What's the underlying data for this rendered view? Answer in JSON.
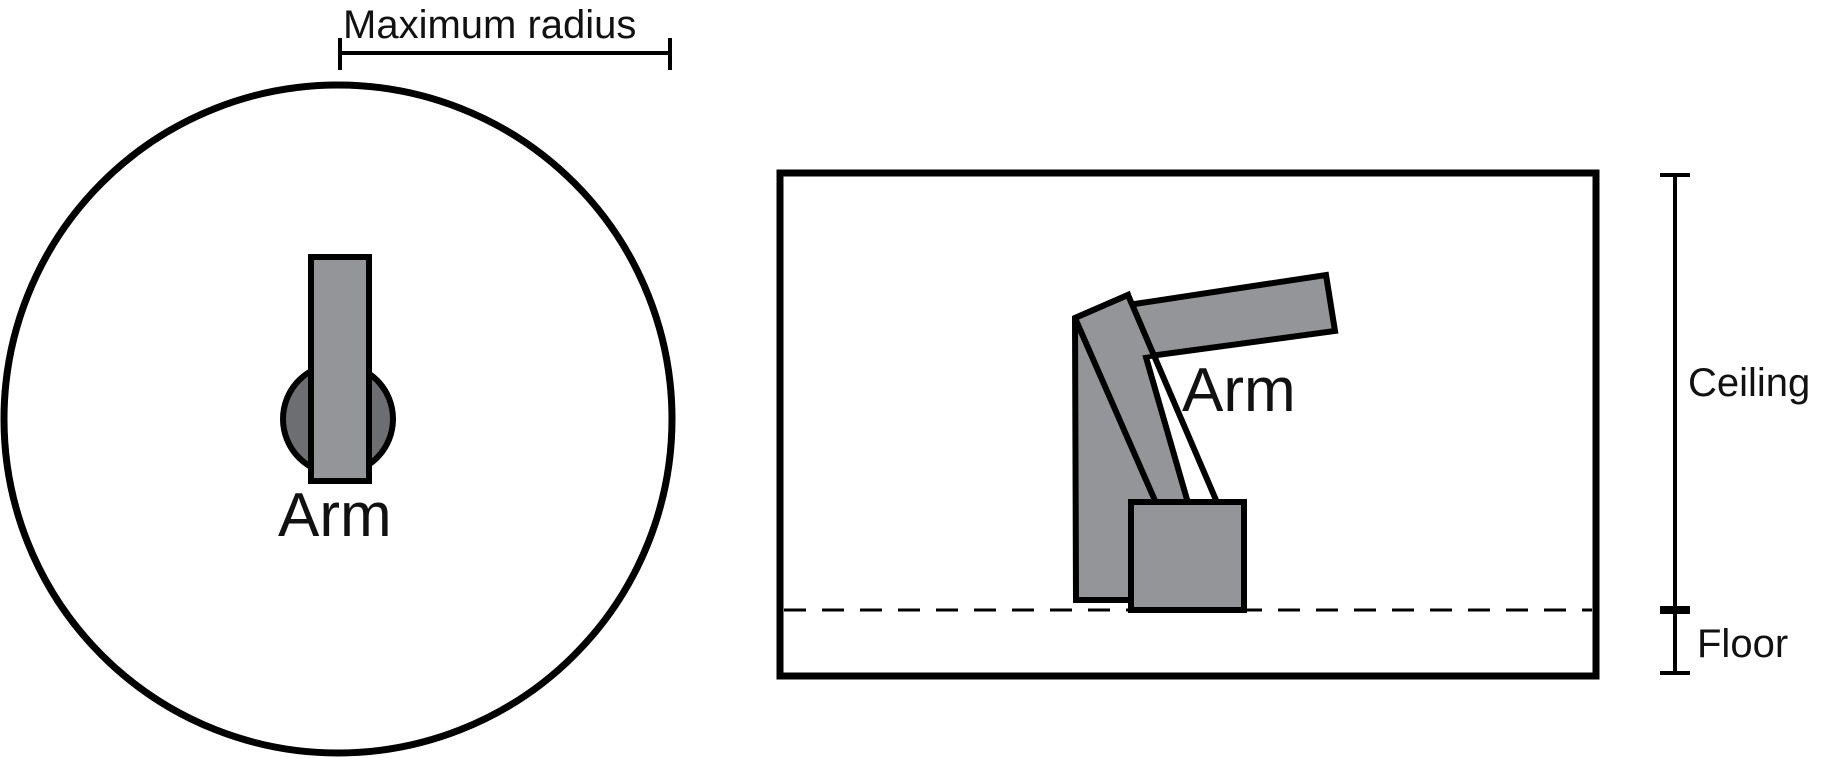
{
  "top_view": {
    "max_radius_label": "Maximum radius",
    "arm_label": "Arm"
  },
  "side_view": {
    "arm_label": "Arm",
    "ceiling_label": "Ceiling",
    "floor_label": "Floor"
  },
  "colors": {
    "stroke": "#000000",
    "arm_fill": "#939598",
    "base_disc_fill": "#6d6e71",
    "background": "#ffffff"
  }
}
